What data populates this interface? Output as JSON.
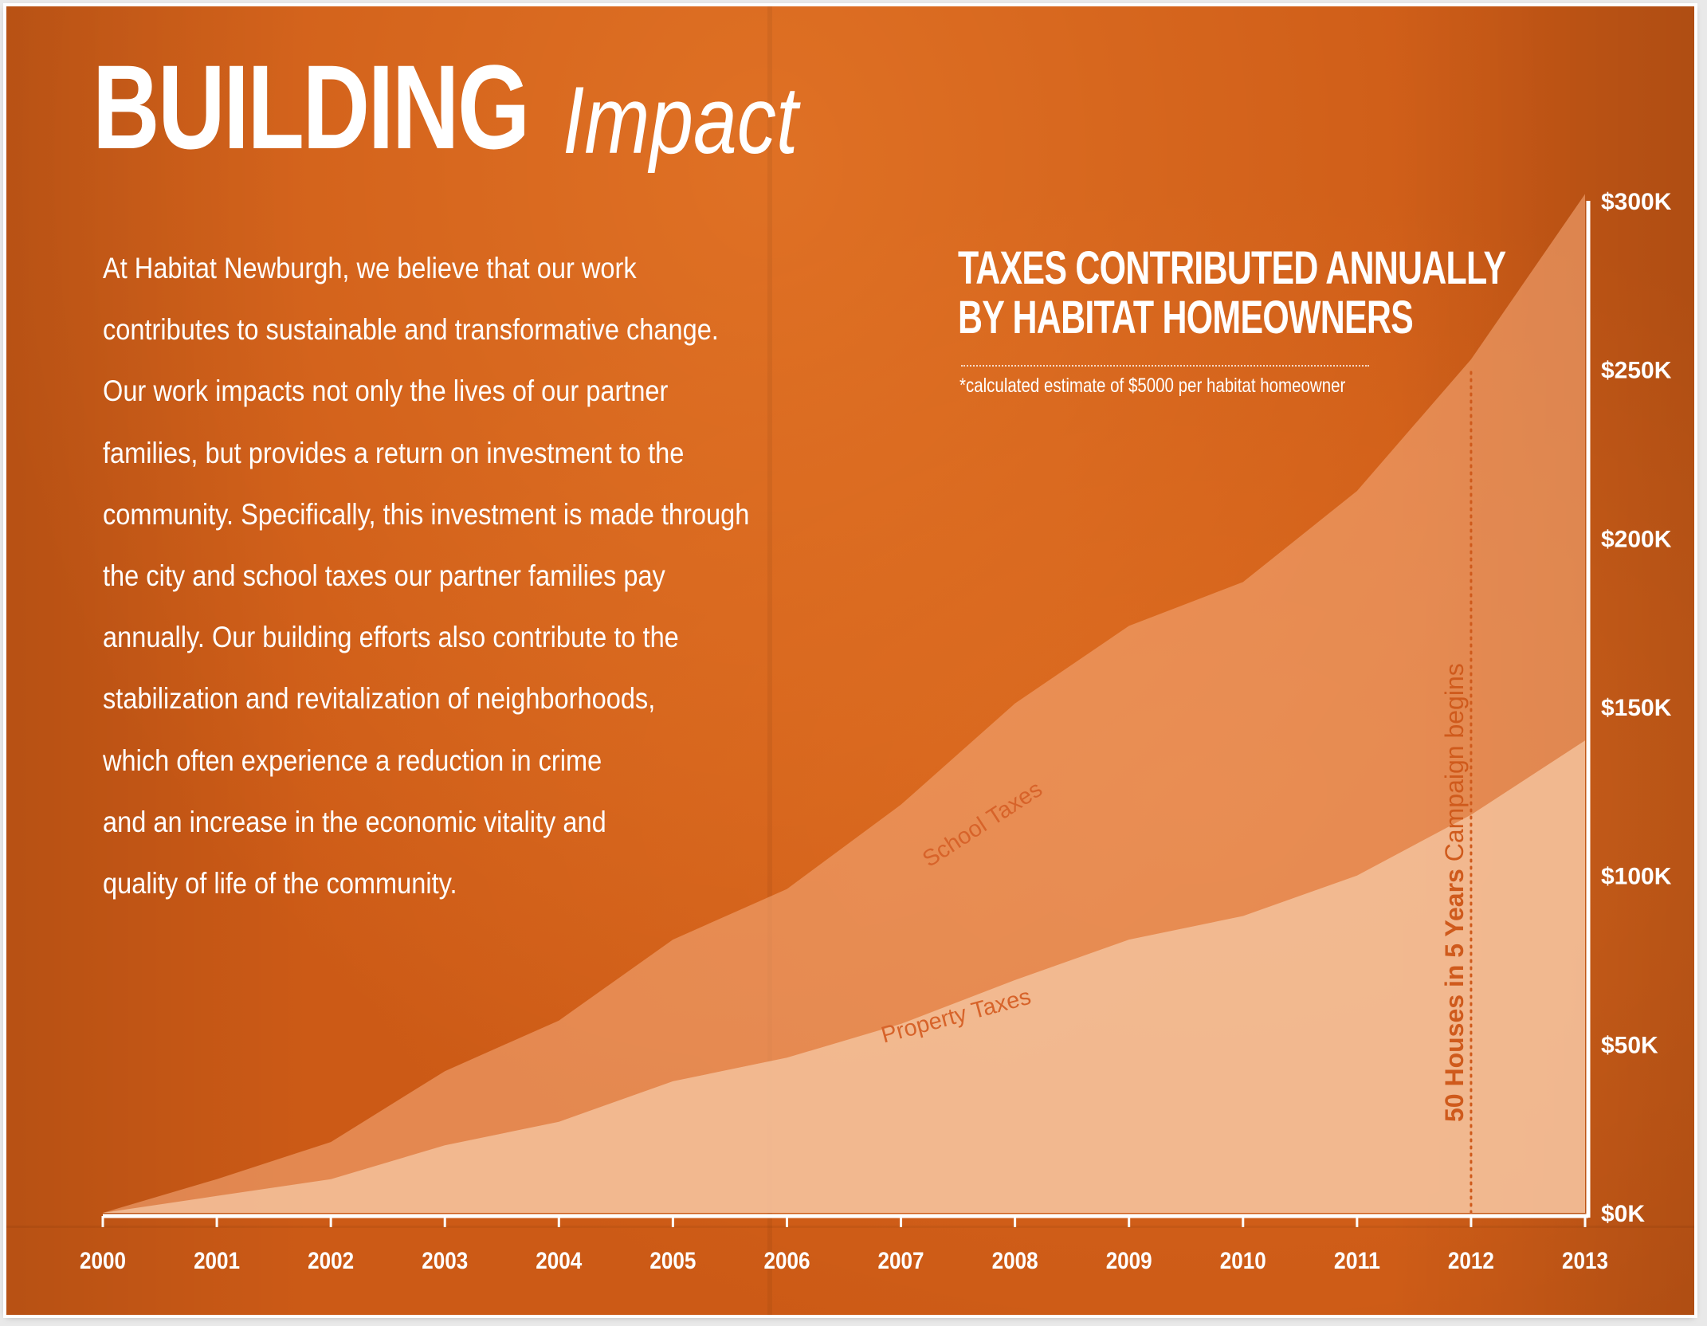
{
  "header": {
    "title_bold": "BUILDING",
    "title_light": "Impact"
  },
  "intro": {
    "lines": [
      "At Habitat Newburgh, we believe that our work",
      "contributes to sustainable and transformative change.",
      "Our work impacts not only the lives of our partner",
      "families, but provides a return on investment to the",
      "community. Specifically, this investment is made through",
      "the city and school taxes our partner families pay",
      "annually.  Our building efforts also contribute to the",
      "stabilization and revitalization of neighborhoods,",
      "which often experience a reduction in crime",
      "and an increase in the economic vitality and",
      "quality of life of the community."
    ]
  },
  "colors": {
    "background": "#cc5a16",
    "total_area": "#f2a574",
    "property_area": "#f7cba8",
    "label_text": "#d7632a",
    "campaign_line": "#cf5a1c"
  },
  "chart_data": {
    "type": "area",
    "stacked": true,
    "title_lines": [
      "TAXES CONTRIBUTED ANNUALLY",
      "BY HABITAT HOMEOWNERS"
    ],
    "note": "*calculated estimate of $5000 per habitat homeowner",
    "x": [
      "2000",
      "2001",
      "2002",
      "2003",
      "2004",
      "2005",
      "2006",
      "2007",
      "2008",
      "2009",
      "2010",
      "2011",
      "2012",
      "2013"
    ],
    "series": [
      {
        "name": "Property Taxes",
        "values": [
          0,
          5000,
          10000,
          20000,
          27000,
          39000,
          46000,
          56000,
          69000,
          81000,
          88000,
          100000,
          118000,
          140000
        ]
      },
      {
        "name": "School Taxes",
        "values": [
          0,
          5000,
          11000,
          22000,
          30000,
          42000,
          50000,
          65000,
          82000,
          93000,
          99000,
          114000,
          135000,
          162000
        ]
      }
    ],
    "totals": [
      0,
      10000,
      21000,
      42000,
      57000,
      81000,
      96000,
      121000,
      151000,
      174000,
      187000,
      214000,
      253000,
      302000
    ],
    "y_ticks": [
      "$0K",
      "$50K",
      "$100K",
      "$150K",
      "$200K",
      "$250K",
      "$300K"
    ],
    "ylim": [
      0,
      300000
    ],
    "y_axis_side": "right",
    "annotation": {
      "x": "2012",
      "text_bold": "50 Houses in 5 Years",
      "text_regular": " Campaign begins"
    }
  }
}
